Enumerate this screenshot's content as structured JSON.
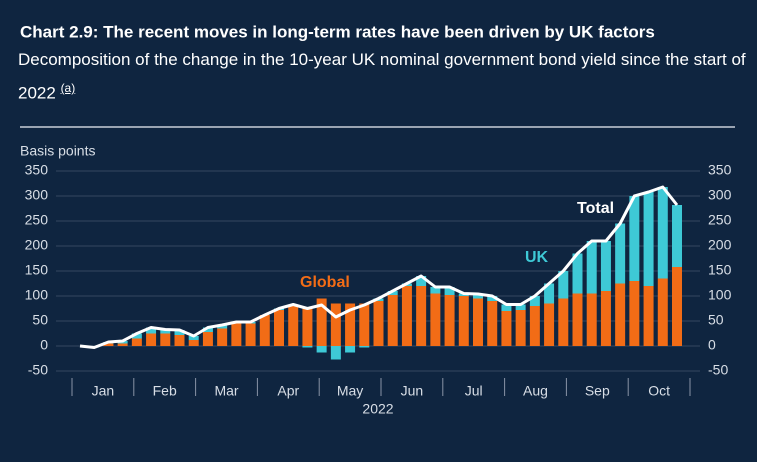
{
  "chart_data": {
    "type": "bar",
    "title": "Chart 2.9: The recent moves in long-term rates have been driven by UK factors",
    "subtitle": "Decomposition of the change in the 10-year UK nominal government bond yield since the start of 2022",
    "footnote_marker": "(a)",
    "y_label": "Basis points",
    "x_label": "2022",
    "months": [
      "Jan",
      "Feb",
      "Mar",
      "Apr",
      "May",
      "Jun",
      "Jul",
      "Aug",
      "Sep",
      "Oct"
    ],
    "ylim": [
      -50,
      350
    ],
    "yticks": [
      -50,
      0,
      50,
      100,
      150,
      200,
      250,
      300,
      350
    ],
    "grid": true,
    "stacked": true,
    "series": [
      {
        "name": "Global",
        "color": "#f26c16",
        "values": [
          0,
          0,
          5,
          5,
          15,
          25,
          25,
          22,
          12,
          28,
          35,
          45,
          45,
          62,
          72,
          80,
          78,
          95,
          85,
          85,
          85,
          90,
          102,
          120,
          120,
          105,
          102,
          100,
          95,
          90,
          70,
          72,
          80,
          85,
          95,
          105,
          105,
          110,
          125,
          130,
          120,
          135,
          158
        ]
      },
      {
        "name": "UK",
        "color": "#3ec9d6",
        "values": [
          0,
          -3,
          3,
          5,
          10,
          12,
          8,
          10,
          8,
          9,
          7,
          3,
          3,
          0,
          3,
          3,
          -3,
          -13,
          -27,
          -13,
          -3,
          5,
          8,
          5,
          20,
          13,
          16,
          5,
          9,
          10,
          13,
          11,
          20,
          40,
          55,
          80,
          105,
          100,
          120,
          170,
          188,
          183,
          124
        ]
      },
      {
        "name": "Total",
        "color": "#ffffff",
        "type": "line",
        "values": [
          0,
          -3,
          8,
          10,
          25,
          37,
          33,
          32,
          20,
          37,
          42,
          48,
          48,
          62,
          75,
          83,
          75,
          82,
          58,
          72,
          82,
          95,
          110,
          125,
          140,
          118,
          118,
          105,
          104,
          100,
          83,
          83,
          100,
          125,
          150,
          185,
          210,
          210,
          245,
          300,
          308,
          318,
          282
        ]
      }
    ]
  }
}
